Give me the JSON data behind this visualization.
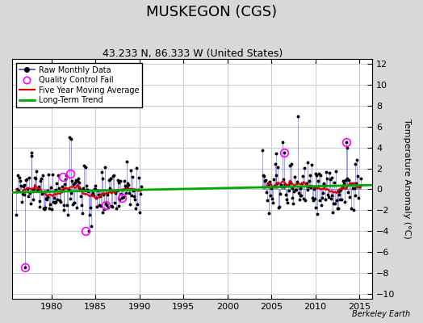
{
  "title": "MUSKEGON (CGS)",
  "subtitle": "43.233 N, 86.333 W (United States)",
  "ylabel": "Temperature Anomaly (°C)",
  "watermark": "Berkeley Earth",
  "xlim": [
    1975.5,
    2016.5
  ],
  "ylim": [
    -10.5,
    12.5
  ],
  "yticks": [
    -10,
    -8,
    -6,
    -4,
    -2,
    0,
    2,
    4,
    6,
    8,
    10,
    12
  ],
  "xticks": [
    1980,
    1985,
    1990,
    1995,
    2000,
    2005,
    2010,
    2015
  ],
  "bg_color": "#d8d8d8",
  "plot_bg_color": "#ffffff",
  "raw_color": "#4444dd",
  "raw_color_alpha": 0.6,
  "ma_color": "#dd0000",
  "trend_color": "#00aa00",
  "qc_color": "#ff00ff",
  "title_fontsize": 13,
  "subtitle_fontsize": 9,
  "grid_color": "#ccccdd"
}
